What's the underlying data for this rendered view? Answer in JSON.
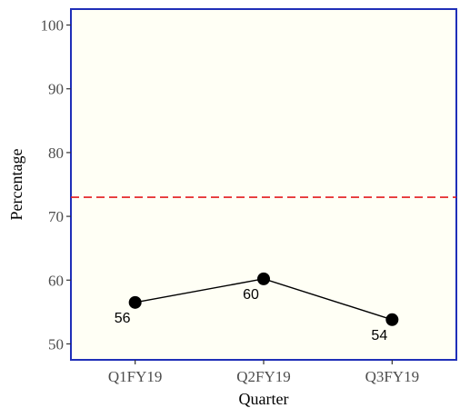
{
  "chart_data": {
    "type": "line",
    "title": "",
    "xlabel": "Quarter",
    "ylabel": "Percentage",
    "categories": [
      "Q1FY19",
      "Q2FY19",
      "Q3FY19"
    ],
    "series": [
      {
        "values": [
          56.5,
          60.2,
          53.8
        ],
        "labels": [
          "56",
          "60",
          "54"
        ],
        "color": "#000000"
      }
    ],
    "reference_line": {
      "value": 73,
      "style": "dashed",
      "color": "#e41a1c"
    },
    "ylim": [
      47.5,
      102.5
    ],
    "yticks": [
      50,
      60,
      70,
      80,
      90,
      100
    ],
    "panel_background": "#fffff5",
    "panel_border_color": "#1f2fb8",
    "grid": false,
    "legend": "none"
  }
}
